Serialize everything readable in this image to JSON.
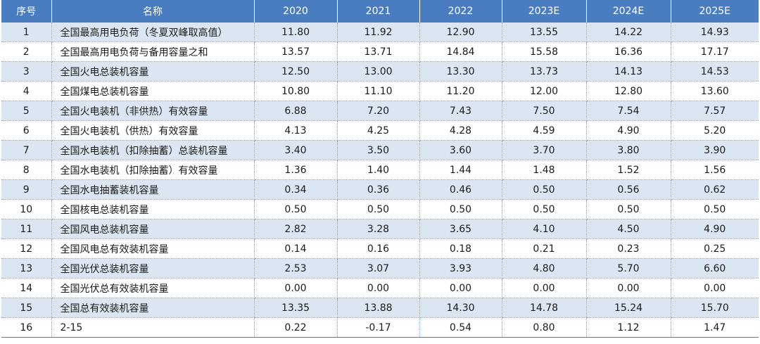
{
  "table": {
    "headers": [
      "序号",
      "名称",
      "2020",
      "2021",
      "2022",
      "2023E",
      "2024E",
      "2025E"
    ],
    "rows": [
      {
        "idx": "1",
        "name": "全国最高用电负荷（冬夏双峰取高值）",
        "values": [
          "11.80",
          "11.92",
          "12.90",
          "13.55",
          "14.22",
          "14.93"
        ]
      },
      {
        "idx": "2",
        "name": "全国最高用电负荷与备用容量之和",
        "values": [
          "13.57",
          "13.71",
          "14.84",
          "15.58",
          "16.36",
          "17.17"
        ]
      },
      {
        "idx": "3",
        "name": "全国火电总装机容量",
        "values": [
          "12.50",
          "13.00",
          "13.30",
          "13.73",
          "14.13",
          "14.53"
        ]
      },
      {
        "idx": "4",
        "name": "全国煤电总装机容量",
        "values": [
          "10.80",
          "11.10",
          "11.20",
          "12.00",
          "12.80",
          "13.60"
        ]
      },
      {
        "idx": "5",
        "name": "全国火电装机（非供热）有效容量",
        "values": [
          "6.88",
          "7.20",
          "7.43",
          "7.50",
          "7.54",
          "7.57"
        ]
      },
      {
        "idx": "6",
        "name": "全国火电装机（供热）有效容量",
        "values": [
          "4.13",
          "4.25",
          "4.28",
          "4.59",
          "4.90",
          "5.20"
        ]
      },
      {
        "idx": "7",
        "name": "全国水电装机（扣除抽蓄）总装机容量",
        "values": [
          "3.40",
          "3.50",
          "3.60",
          "3.70",
          "3.80",
          "3.90"
        ]
      },
      {
        "idx": "8",
        "name": "全国水电装机（扣除抽蓄）有效容量",
        "values": [
          "1.36",
          "1.40",
          "1.44",
          "1.48",
          "1.52",
          "1.56"
        ]
      },
      {
        "idx": "9",
        "name": "全国水电抽蓄装机容量",
        "values": [
          "0.34",
          "0.36",
          "0.46",
          "0.50",
          "0.56",
          "0.62"
        ]
      },
      {
        "idx": "10",
        "name": "全国核电总装机容量",
        "values": [
          "0.50",
          "0.50",
          "0.50",
          "0.50",
          "0.50",
          "0.50"
        ]
      },
      {
        "idx": "11",
        "name": "全国风电总装机容量",
        "values": [
          "2.82",
          "3.28",
          "3.65",
          "4.10",
          "4.50",
          "4.90"
        ]
      },
      {
        "idx": "12",
        "name": "全国风电总有效装机容量",
        "values": [
          "0.14",
          "0.16",
          "0.18",
          "0.21",
          "0.23",
          "0.25"
        ]
      },
      {
        "idx": "13",
        "name": "全国光伏总装机容量",
        "values": [
          "2.53",
          "3.07",
          "3.93",
          "4.80",
          "5.70",
          "6.60"
        ]
      },
      {
        "idx": "14",
        "name": "全国光伏总有效装机容量",
        "values": [
          "0.00",
          "0.00",
          "0.00",
          "0.00",
          "0.00",
          "0.00"
        ]
      },
      {
        "idx": "15",
        "name": "全国总有效装机容量",
        "values": [
          "13.35",
          "13.88",
          "14.30",
          "14.78",
          "15.24",
          "15.70"
        ]
      },
      {
        "idx": "16",
        "name": "2-15",
        "values": [
          "0.22",
          "-0.17",
          "0.54",
          "0.80",
          "1.12",
          "1.47"
        ]
      }
    ]
  },
  "colors": {
    "header_bg": "#4a7dbf",
    "stripe_bg": "#dce6f2"
  }
}
